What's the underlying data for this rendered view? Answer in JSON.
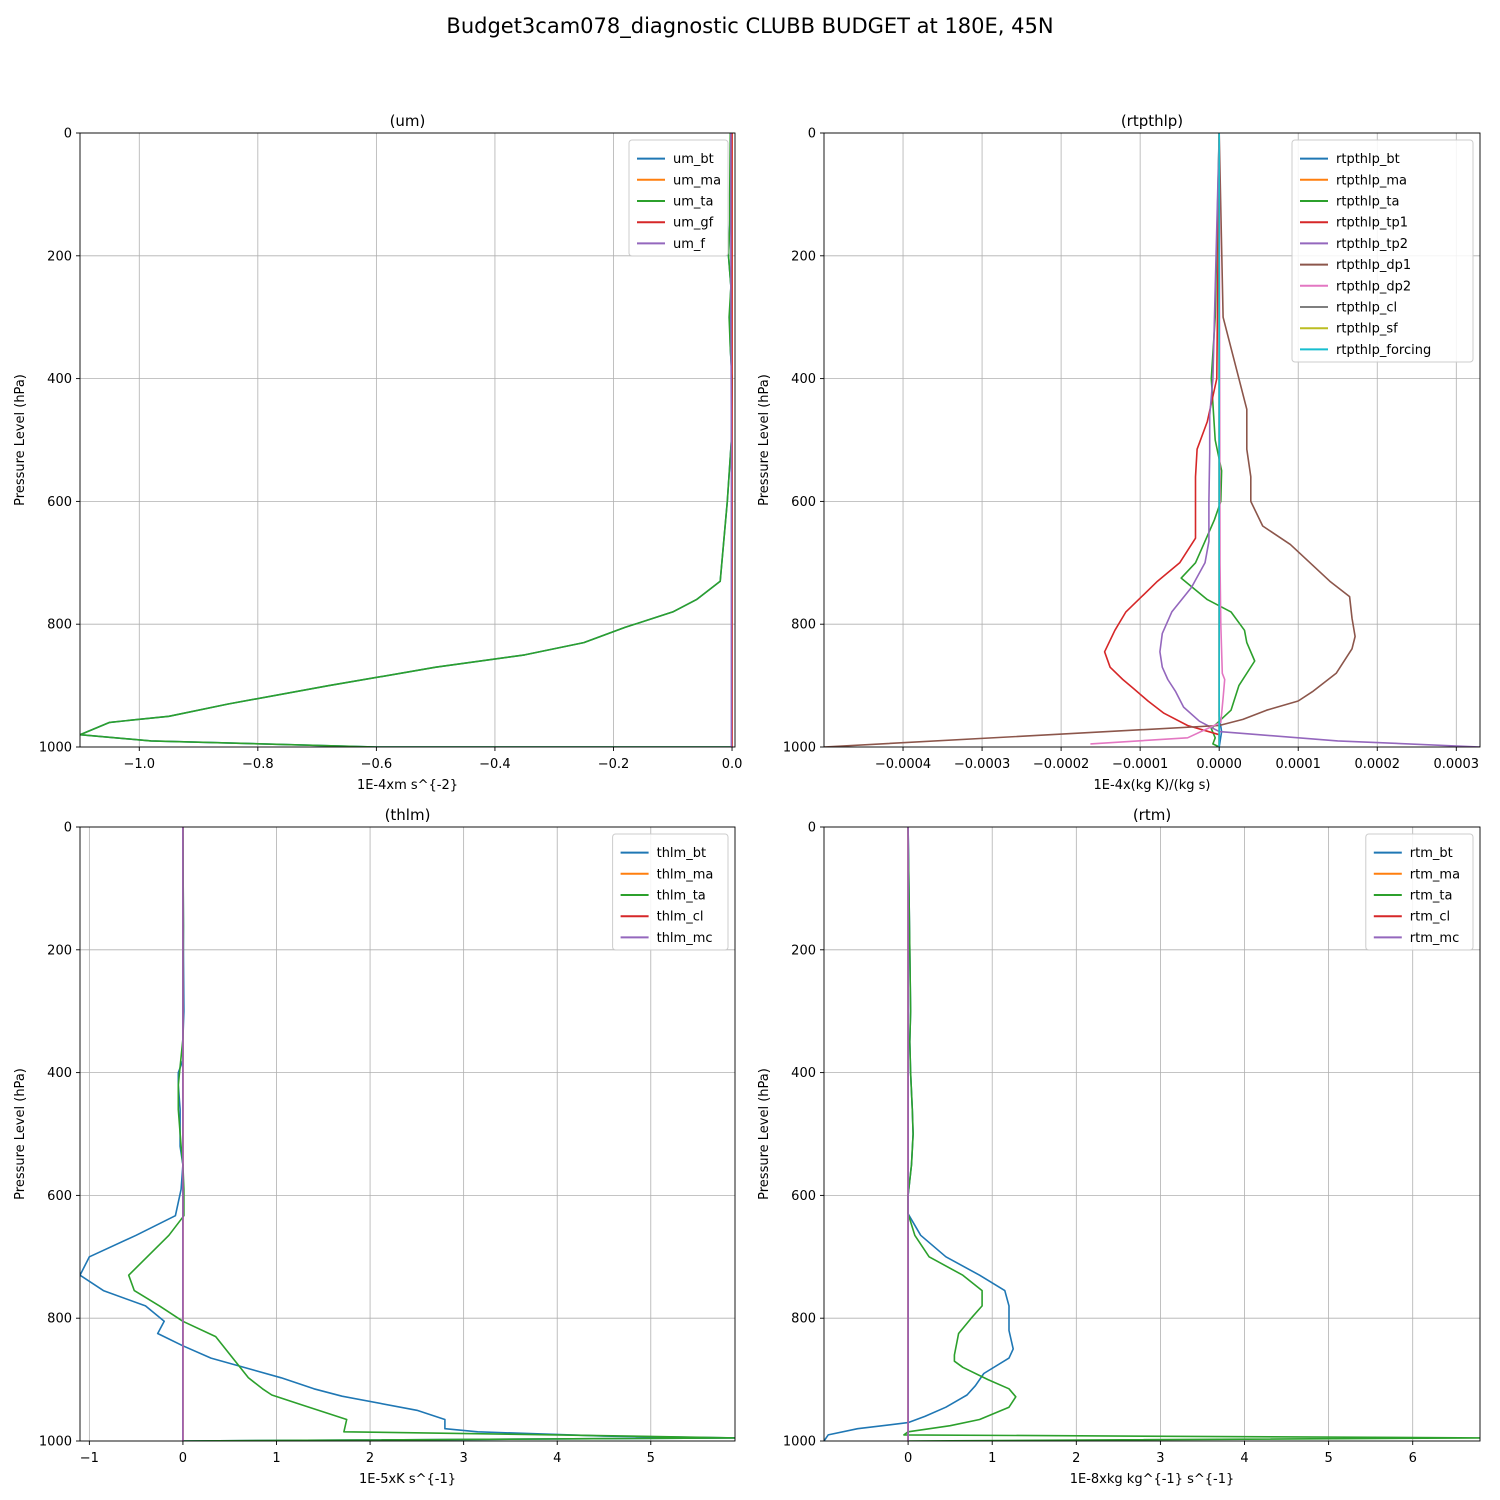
{
  "figure": {
    "title": "Budget3cam078_diagnostic CLUBB BUDGET at 180E, 45N"
  },
  "colors": {
    "C0": "#1f77b4",
    "C1": "#ff7f0e",
    "C2": "#2ca02c",
    "C3": "#d62728",
    "C4": "#9467bd",
    "C5": "#8c564b",
    "C6": "#e377c2",
    "C7": "#7f7f7f",
    "C8": "#bcbd22",
    "C9": "#17becf"
  },
  "chart_data": [
    {
      "type": "line",
      "title": "(um)",
      "xlabel": "1E-4xm s^{-2}",
      "ylabel": "Pressure Level (hPa)",
      "xlim": [
        -1.1,
        0.005
      ],
      "ylim": [
        1000,
        0
      ],
      "xticks": [
        -1.0,
        -0.8,
        -0.6,
        -0.4,
        -0.2,
        0.0
      ],
      "xtick_labels": [
        "−1.0",
        "−0.8",
        "−0.6",
        "−0.4",
        "−0.2",
        "0.0"
      ],
      "yticks": [
        0,
        200,
        400,
        600,
        800,
        1000
      ],
      "ytick_labels": [
        "0",
        "200",
        "400",
        "600",
        "800",
        "1000"
      ],
      "grid": true,
      "legend": "upper right",
      "series": [
        {
          "name": "um_bt",
          "color": "C0",
          "x": [
            -0.003,
            -0.003,
            -0.004,
            -0.006,
            -0.002,
            -0.004,
            -0.003,
            0.0,
            -0.001,
            -0.008,
            -0.02,
            -0.06,
            -0.1,
            -0.18,
            -0.25,
            -0.35,
            -0.5,
            -0.68,
            -0.85,
            -0.95,
            -1.05,
            -1.1,
            -0.98,
            -0.6,
            0.0
          ],
          "y": [
            0,
            100,
            150,
            200,
            250,
            300,
            350,
            400,
            500,
            600,
            730,
            760,
            780,
            805,
            830,
            850,
            870,
            900,
            930,
            950,
            960,
            980,
            990,
            1000,
            1000
          ]
        },
        {
          "name": "um_ma",
          "color": "C1",
          "x": [
            0.0,
            0.0
          ],
          "y": [
            0,
            1000
          ]
        },
        {
          "name": "um_ta",
          "color": "C2",
          "x": [
            -0.003,
            -0.004,
            -0.004,
            -0.006,
            -0.002,
            -0.005,
            -0.003,
            0.0,
            -0.001,
            -0.008,
            -0.02,
            -0.06,
            -0.1,
            -0.18,
            -0.25,
            -0.35,
            -0.5,
            -0.68,
            -0.85,
            -0.95,
            -1.05,
            -1.1,
            -0.98,
            -0.6,
            0.0
          ],
          "y": [
            0,
            100,
            150,
            200,
            250,
            300,
            350,
            400,
            500,
            600,
            730,
            760,
            780,
            805,
            830,
            850,
            870,
            900,
            930,
            950,
            960,
            980,
            990,
            1000,
            1000
          ]
        },
        {
          "name": "um_gf",
          "color": "C3",
          "x": [
            0.0,
            0.0
          ],
          "y": [
            0,
            1000
          ]
        },
        {
          "name": "um_f",
          "color": "C4",
          "x": [
            -0.002,
            -0.002,
            -0.001,
            -0.001,
            -0.001
          ],
          "y": [
            0,
            250,
            500,
            750,
            1000
          ]
        }
      ]
    },
    {
      "type": "line",
      "title": "(rtpthlp)",
      "xlabel": "1E-4x(kg K)/(kg s)",
      "ylabel": "Pressure Level (hPa)",
      "xlim": [
        -0.0005,
        0.00033
      ],
      "ylim": [
        1000,
        0
      ],
      "xticks": [
        -0.0004,
        -0.0003,
        -0.0002,
        -0.0001,
        0.0,
        0.0001,
        0.0002,
        0.0003
      ],
      "xtick_labels": [
        "−0.0004",
        "−0.0003",
        "−0.0002",
        "−0.0001",
        "0.0000",
        "0.0001",
        "0.0002",
        "0.0003"
      ],
      "yticks": [
        0,
        200,
        400,
        600,
        800,
        1000
      ],
      "ytick_labels": [
        "0",
        "200",
        "400",
        "600",
        "800",
        "1000"
      ],
      "grid": true,
      "legend": "upper right",
      "series": [
        {
          "name": "rtpthlp_bt",
          "color": "C0",
          "x": [
            0.0,
            0.0,
            3e-06,
            0.0
          ],
          "y": [
            0,
            950,
            975,
            1000
          ]
        },
        {
          "name": "rtpthlp_ma",
          "color": "C1",
          "x": [
            0.0,
            0.0
          ],
          "y": [
            0,
            1000
          ]
        },
        {
          "name": "rtpthlp_ta",
          "color": "C2",
          "x": [
            0.0,
            -5e-06,
            -1e-05,
            -5e-06,
            3e-06,
            2e-06,
            -6e-06,
            -1.8e-05,
            -3e-05,
            -4.8e-05,
            -1.5e-05,
            1.5e-05,
            3.2e-05,
            3.5e-05,
            4.5e-05,
            2.5e-05,
            1.5e-05,
            -1e-05,
            -5e-06,
            -8e-06,
            0.0
          ],
          "y": [
            0,
            300,
            400,
            500,
            550,
            600,
            630,
            665,
            700,
            725,
            760,
            780,
            810,
            830,
            860,
            900,
            940,
            970,
            985,
            995,
            1000
          ]
        },
        {
          "name": "rtpthlp_tp1",
          "color": "C3",
          "x": [
            0.0,
            -3e-06,
            -1.5e-05,
            -2.8e-05,
            -3e-05,
            -3e-05,
            -3e-05,
            -5e-05,
            -7.8e-05,
            -9.8e-05,
            -0.000118,
            -0.000132,
            -0.000145,
            -0.000138,
            -0.000122,
            -0.000108,
            -9e-05,
            -7e-05,
            -4e-05,
            0.0,
            0.0
          ],
          "y": [
            0,
            400,
            470,
            515,
            560,
            600,
            660,
            700,
            730,
            755,
            780,
            810,
            845,
            870,
            890,
            905,
            925,
            945,
            965,
            980,
            1000
          ]
        },
        {
          "name": "rtpthlp_tp2",
          "color": "C4",
          "x": [
            0.0,
            -8e-06,
            -1.2e-05,
            -1.2e-05,
            -1.3e-05,
            -1.3e-05,
            -1.8e-05,
            -3.5e-05,
            -6e-05,
            -7.2e-05,
            -7.5e-05,
            -7.2e-05,
            -6.5e-05,
            -5.5e-05,
            -4.5e-05,
            -2.5e-05,
            0.0,
            5e-05,
            0.00015,
            0.00033
          ],
          "y": [
            0,
            400,
            460,
            520,
            600,
            665,
            700,
            740,
            780,
            815,
            845,
            870,
            890,
            910,
            935,
            958,
            975,
            980,
            990,
            1000
          ]
        },
        {
          "name": "rtpthlp_dp1",
          "color": "C5",
          "x": [
            0.0,
            5e-06,
            1.5e-05,
            2.5e-05,
            3.5e-05,
            3.5e-05,
            4e-05,
            4e-05,
            5.5e-05,
            9e-05,
            0.00014,
            0.000165,
            0.000168,
            0.000172,
            0.000168,
            0.000148,
            0.000118,
            0.0001,
            6e-05,
            3e-05,
            0.0,
            -0.0005
          ],
          "y": [
            0,
            300,
            350,
            400,
            450,
            515,
            560,
            600,
            640,
            670,
            730,
            755,
            790,
            820,
            840,
            880,
            910,
            925,
            940,
            955,
            965,
            1000
          ]
        },
        {
          "name": "rtpthlp_dp2",
          "color": "C6",
          "x": [
            0.0,
            1e-06,
            2e-06,
            4e-06,
            7e-06,
            5e-06,
            2e-06,
            -4e-05,
            -0.000163
          ],
          "y": [
            0,
            700,
            800,
            880,
            890,
            920,
            960,
            985,
            995
          ]
        },
        {
          "name": "rtpthlp_cl",
          "color": "C7",
          "x": [
            0.0,
            0.0
          ],
          "y": [
            0,
            1000
          ]
        },
        {
          "name": "rtpthlp_sf",
          "color": "C8",
          "x": [
            0.0,
            0.0
          ],
          "y": [
            0,
            1000
          ]
        },
        {
          "name": "rtpthlp_forcing",
          "color": "C9",
          "x": [
            0.0,
            0.0
          ],
          "y": [
            0,
            1000
          ]
        }
      ]
    },
    {
      "type": "line",
      "title": "(thlm)",
      "xlabel": "1E-5xK s^{-1}",
      "ylabel": "Pressure Level (hPa)",
      "xlim": [
        -1.1,
        5.9
      ],
      "ylim": [
        1000,
        0
      ],
      "xticks": [
        -1,
        0,
        1,
        2,
        3,
        4,
        5
      ],
      "xtick_labels": [
        "−1",
        "0",
        "1",
        "2",
        "3",
        "4",
        "5"
      ],
      "yticks": [
        0,
        200,
        400,
        600,
        800,
        1000
      ],
      "ytick_labels": [
        "0",
        "200",
        "400",
        "600",
        "800",
        "1000"
      ],
      "grid": true,
      "legend": "upper right",
      "series": [
        {
          "name": "thlm_bt",
          "color": "C0",
          "x": [
            0.0,
            0.005,
            0.005,
            0.01,
            0.0,
            0.0,
            -0.05,
            -0.05,
            -0.03,
            -0.03,
            0.0,
            -0.02,
            -0.08,
            -0.5,
            -1.0,
            -1.1,
            -0.85,
            -0.4,
            -0.2,
            -0.27,
            0.0,
            0.3,
            1.05,
            1.4,
            1.7,
            2.5,
            2.8,
            2.8,
            3.15,
            4.5,
            5.9,
            0.0
          ],
          "y": [
            0,
            160,
            200,
            300,
            345,
            380,
            400,
            420,
            460,
            520,
            550,
            590,
            633,
            665,
            700,
            730,
            755,
            780,
            805,
            825,
            845,
            865,
            897,
            915,
            927,
            950,
            965,
            980,
            985,
            992,
            995,
            1000
          ]
        },
        {
          "name": "thlm_ma",
          "color": "C1",
          "x": [
            0.0,
            0.0
          ],
          "y": [
            0,
            1000
          ]
        },
        {
          "name": "thlm_ta",
          "color": "C2",
          "x": [
            0.0,
            0.005,
            0.0,
            0.0,
            -0.05,
            -0.05,
            -0.02,
            0.0,
            0.01,
            0.01,
            -0.15,
            -0.58,
            -0.52,
            -0.25,
            0.0,
            0.35,
            0.7,
            0.85,
            0.95,
            1.25,
            1.75,
            1.72,
            4.0,
            5.9,
            0.0
          ],
          "y": [
            0,
            160,
            300,
            345,
            420,
            460,
            520,
            550,
            590,
            633,
            665,
            730,
            755,
            780,
            805,
            830,
            897,
            915,
            925,
            940,
            965,
            985,
            990,
            995,
            1000
          ]
        },
        {
          "name": "thlm_cl",
          "color": "C3",
          "x": [
            0.0,
            0.0
          ],
          "y": [
            0,
            1000
          ]
        },
        {
          "name": "thlm_mc",
          "color": "C4",
          "x": [
            0.0,
            0.0
          ],
          "y": [
            0,
            1000
          ]
        }
      ]
    },
    {
      "type": "line",
      "title": "(rtm)",
      "xlabel": "1E-8xkg kg^{-1} s^{-1}",
      "ylabel": "Pressure Level (hPa)",
      "xlim": [
        -1.0,
        6.8
      ],
      "ylim": [
        1000,
        0
      ],
      "xticks": [
        0,
        1,
        2,
        3,
        4,
        5,
        6
      ],
      "xtick_labels": [
        "0",
        "1",
        "2",
        "3",
        "4",
        "5",
        "6"
      ],
      "yticks": [
        0,
        200,
        400,
        600,
        800,
        1000
      ],
      "ytick_labels": [
        "0",
        "200",
        "400",
        "600",
        "800",
        "1000"
      ],
      "grid": true,
      "legend": "upper right",
      "series": [
        {
          "name": "rtm_bt",
          "color": "C0",
          "x": [
            0.0,
            0.02,
            0.03,
            0.02,
            0.03,
            0.05,
            0.06,
            0.04,
            0.0,
            0.0,
            0.15,
            0.45,
            0.85,
            1.15,
            1.2,
            1.2,
            1.25,
            1.2,
            0.9,
            0.8,
            0.7,
            0.45,
            0.2,
            0.0,
            -0.6,
            -0.95,
            -1.0
          ],
          "y": [
            0,
            200,
            300,
            350,
            400,
            460,
            500,
            550,
            600,
            630,
            665,
            700,
            730,
            755,
            780,
            820,
            850,
            865,
            890,
            910,
            925,
            945,
            960,
            970,
            980,
            990,
            1000
          ]
        },
        {
          "name": "rtm_ma",
          "color": "C1",
          "x": [
            0.0,
            0.0
          ],
          "y": [
            0,
            1000
          ]
        },
        {
          "name": "rtm_ta",
          "color": "C2",
          "x": [
            0.0,
            0.02,
            0.03,
            0.02,
            0.03,
            0.05,
            0.06,
            0.04,
            0.0,
            0.0,
            0.08,
            0.25,
            0.65,
            0.88,
            0.88,
            0.75,
            0.6,
            0.55,
            0.55,
            0.65,
            0.95,
            1.2,
            1.28,
            1.2,
            0.85,
            0.5,
            0.0,
            -0.05,
            6.8,
            0.0
          ],
          "y": [
            0,
            200,
            300,
            350,
            400,
            460,
            500,
            550,
            600,
            630,
            665,
            700,
            730,
            755,
            780,
            800,
            825,
            860,
            870,
            880,
            900,
            915,
            928,
            945,
            965,
            975,
            985,
            990,
            995,
            1000
          ]
        },
        {
          "name": "rtm_cl",
          "color": "C3",
          "x": [
            0.0,
            0.0
          ],
          "y": [
            0,
            1000
          ]
        },
        {
          "name": "rtm_mc",
          "color": "C4",
          "x": [
            0.0,
            0.0
          ],
          "y": [
            0,
            1000
          ]
        }
      ]
    }
  ]
}
